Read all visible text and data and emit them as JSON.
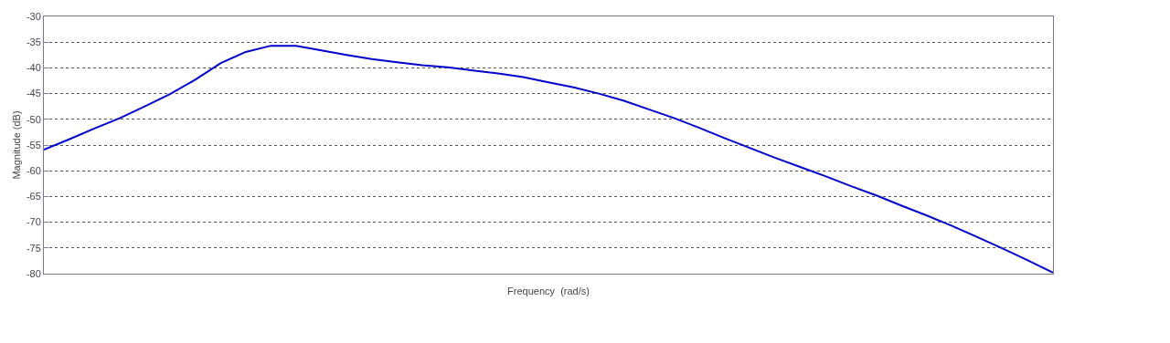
{
  "chart_data": {
    "type": "line",
    "xlabel": "Frequency  (rad/s)",
    "ylabel": "Magnitude (dB)",
    "categories": [
      null,
      null,
      null,
      null,
      null,
      null,
      null,
      null,
      null,
      null,
      null,
      null,
      null,
      null,
      null,
      null,
      null,
      null,
      null,
      null,
      null,
      null,
      null,
      null,
      null,
      null,
      null,
      null,
      null,
      null,
      null,
      null,
      null,
      null,
      null,
      null,
      null,
      null,
      null,
      null,
      null
    ],
    "series": [
      {
        "color": "#0000cc",
        "values": [
          -55.9,
          -53.9,
          -51.8,
          -49.8,
          -47.5,
          -45.1,
          -42.3,
          -39.1,
          -36.9,
          -35.7,
          -35.7,
          -36.6,
          -37.5,
          -38.3,
          -38.9,
          -39.5,
          -39.9,
          -40.5,
          -41.1,
          -41.8,
          -42.8,
          -43.8,
          -45.0,
          -46.4,
          -48.1,
          -49.8,
          -51.7,
          -53.7,
          -55.6,
          -57.5,
          -59.3,
          -61.1,
          -63.0,
          -64.8,
          -66.8,
          -68.7,
          -70.7,
          -72.9,
          -75.1,
          -77.4,
          -79.8
        ]
      }
    ],
    "ylim": [
      -80,
      -30
    ],
    "yticks": [
      -80,
      -75,
      -70,
      -65,
      -60,
      -55,
      -50,
      -45,
      -40,
      -35,
      -30
    ],
    "grid": "y",
    "line_style": "solid",
    "marker": "none",
    "tick_labels": "y"
  }
}
